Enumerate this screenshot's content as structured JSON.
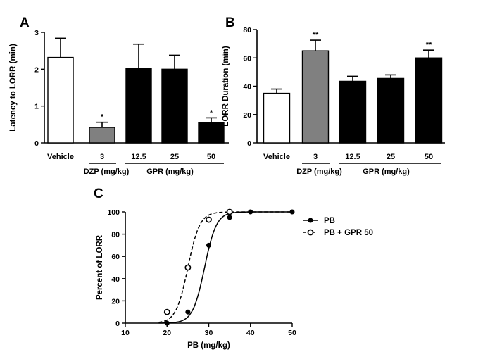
{
  "chart_data": [
    {
      "type": "bar",
      "panel": "A",
      "ylabel": "Latency to LORR (min)",
      "ylim": [
        0,
        3
      ],
      "yticks": [
        "0",
        "1",
        "2",
        "3"
      ],
      "categories": [
        "Vehicle",
        "3",
        "12.5",
        "25",
        "50"
      ],
      "values": [
        2.32,
        0.42,
        2.03,
        2.0,
        0.55
      ],
      "errors": [
        0.52,
        0.14,
        0.65,
        0.38,
        0.13
      ],
      "significance": [
        "",
        "*",
        "",
        "",
        "*"
      ],
      "colors": [
        "#ffffff",
        "#808080",
        "#000000",
        "#000000",
        "#000000"
      ],
      "groups": [
        {
          "label": "DZP  (mg/kg)",
          "categories": [
            "3"
          ]
        },
        {
          "label": "GPR  (mg/kg)",
          "categories": [
            "12.5",
            "25",
            "50"
          ]
        }
      ]
    },
    {
      "type": "bar",
      "panel": "B",
      "ylabel": "LORR Duration (min)",
      "ylim": [
        0,
        80
      ],
      "yticks": [
        "0",
        "20",
        "40",
        "60",
        "80"
      ],
      "categories": [
        "Vehicle",
        "3",
        "12.5",
        "25",
        "50"
      ],
      "values": [
        35,
        65,
        43.5,
        45.5,
        60
      ],
      "errors": [
        3,
        7.5,
        3.5,
        2.5,
        5.5
      ],
      "significance": [
        "",
        "**",
        "",
        "",
        "**"
      ],
      "colors": [
        "#ffffff",
        "#808080",
        "#000000",
        "#000000",
        "#000000"
      ],
      "groups": [
        {
          "label": "DZP  (mg/kg)",
          "categories": [
            "3"
          ]
        },
        {
          "label": "GPR   (mg/kg)",
          "categories": [
            "12.5",
            "25",
            "50"
          ]
        }
      ]
    },
    {
      "type": "line",
      "panel": "C",
      "xlabel": "PB (mg/kg)",
      "ylabel": "Percent of LORR",
      "xlim": [
        10,
        50
      ],
      "ylim": [
        0,
        100
      ],
      "xticks": [
        "10",
        "20",
        "30",
        "40",
        "50"
      ],
      "yticks": [
        "0",
        "20",
        "40",
        "60",
        "80",
        "100"
      ],
      "legend_position": "top-right",
      "series": [
        {
          "name": "PB",
          "x": [
            20,
            25,
            30,
            35,
            40,
            50
          ],
          "y": [
            0,
            10,
            70,
            95,
            100,
            100
          ],
          "marker": "filled-circle",
          "line": "solid",
          "ec50": 29.0,
          "hill": 0.32
        },
        {
          "name": "PB + GPR 50",
          "x": [
            20,
            25,
            30,
            35
          ],
          "y": [
            10,
            50,
            93,
            100
          ],
          "marker": "open-circle",
          "line": "dashed",
          "ec50": 25.0,
          "hill": 0.32
        }
      ]
    }
  ]
}
